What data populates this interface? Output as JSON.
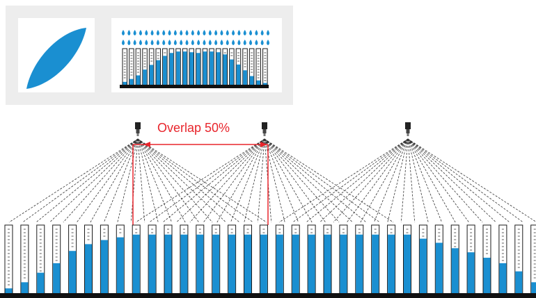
{
  "colors": {
    "water": "#1a8fd1",
    "overlap": "#e8252c",
    "panel": "#ededed",
    "tube_outline": "#1a1a1a",
    "ground": "#111111"
  },
  "icons": {
    "pattern": "elliptical-spray-pattern-icon",
    "droplet": "water-drop-icon",
    "nozzle": "spray-nozzle-icon"
  },
  "overlap": {
    "label": "Overlap 50%"
  },
  "top_panel": {
    "droplet_count": 26,
    "gauge_fill": [
      0.08,
      0.16,
      0.26,
      0.42,
      0.55,
      0.68,
      0.8,
      0.88,
      0.92,
      0.92,
      0.9,
      0.88,
      0.92,
      0.92,
      0.9,
      0.84,
      0.7,
      0.56,
      0.4,
      0.24,
      0.12,
      0.05
    ]
  },
  "bottom": {
    "nozzle_count": 3,
    "gauge_fill": [
      0.07,
      0.16,
      0.3,
      0.44,
      0.62,
      0.72,
      0.78,
      0.82,
      0.86,
      0.86,
      0.86,
      0.86,
      0.86,
      0.86,
      0.86,
      0.86,
      0.86,
      0.86,
      0.86,
      0.86,
      0.86,
      0.86,
      0.86,
      0.86,
      0.86,
      0.86,
      0.8,
      0.74,
      0.66,
      0.6,
      0.52,
      0.44,
      0.32,
      0.16,
      0.09
    ]
  }
}
